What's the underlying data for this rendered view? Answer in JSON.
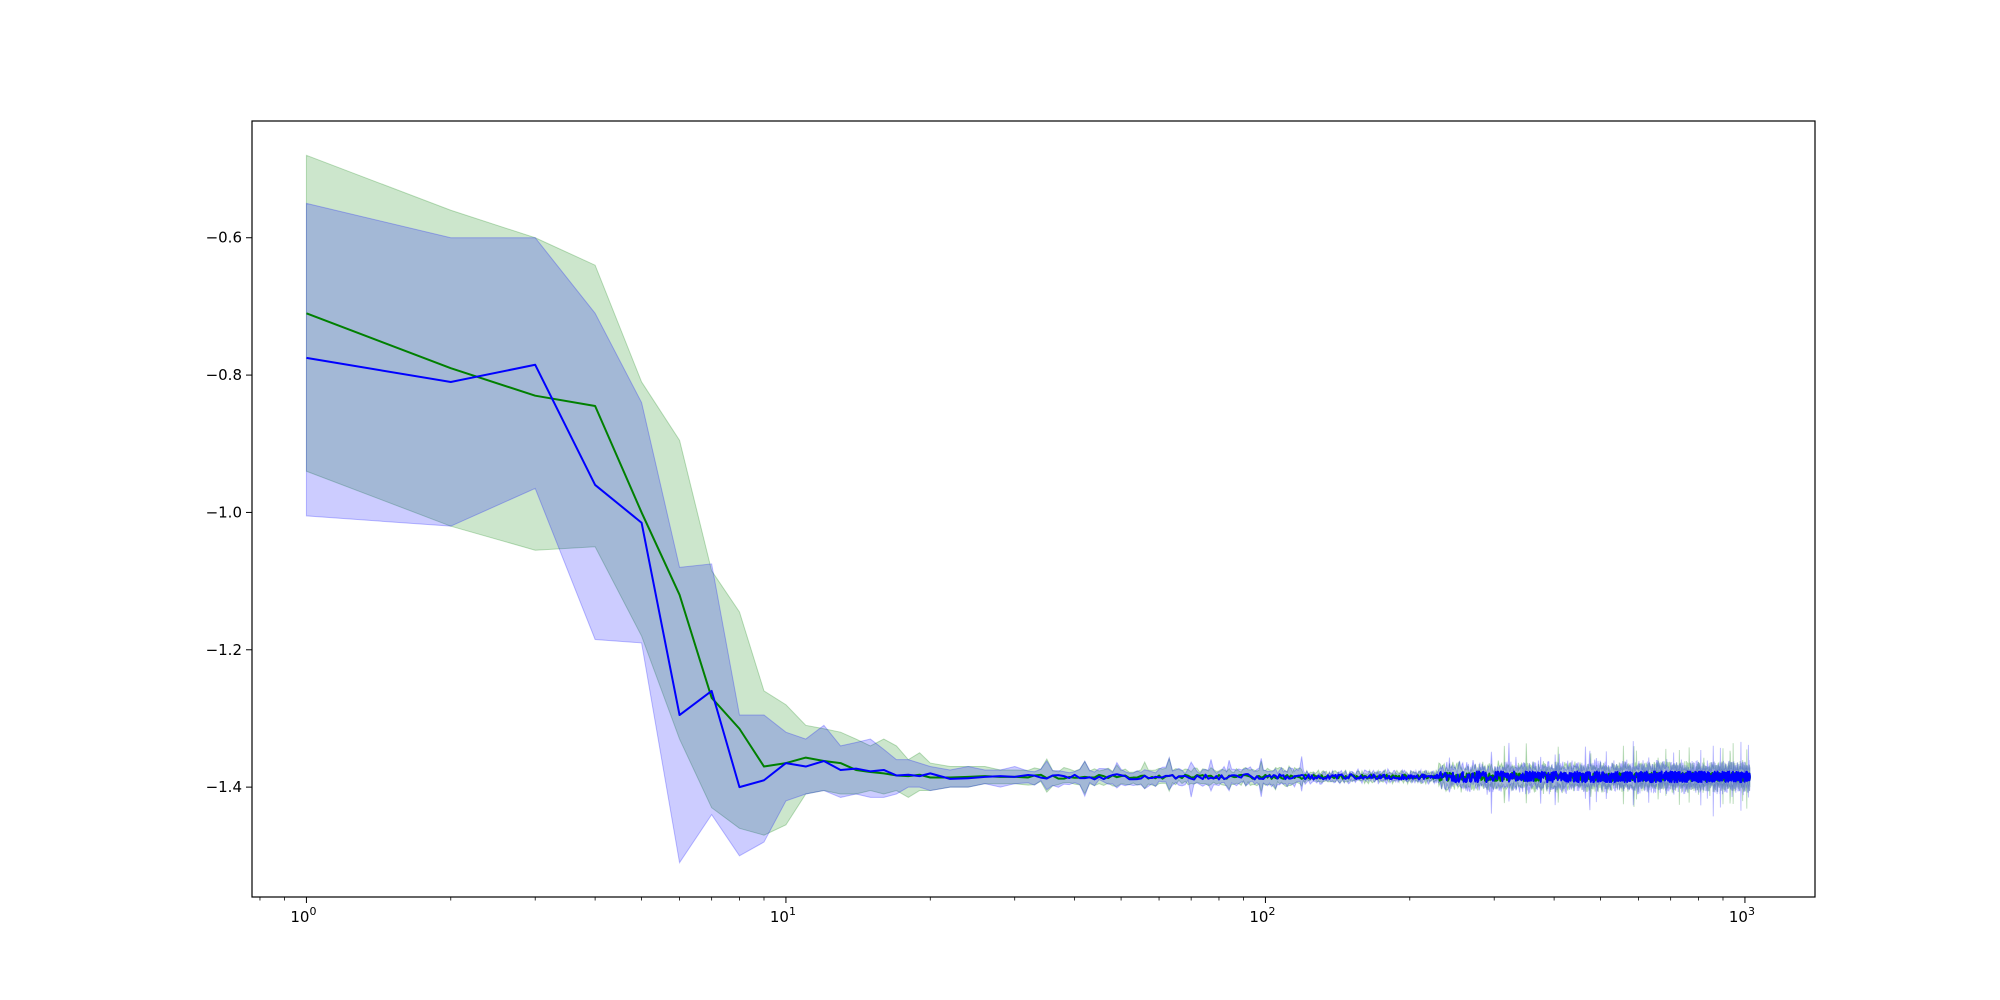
{
  "chart_data": {
    "type": "line",
    "title": "",
    "xlabel": "",
    "ylabel": "",
    "xscale": "log",
    "xlim": [
      0.77,
      1400
    ],
    "ylim": [
      -1.56,
      -0.43
    ],
    "grid": false,
    "legend": "none",
    "x_ticks": [
      {
        "value": 1,
        "base": "10",
        "exp": "0"
      },
      {
        "value": 10,
        "base": "10",
        "exp": "1"
      },
      {
        "value": 100,
        "base": "10",
        "exp": "2"
      },
      {
        "value": 1000,
        "base": "10",
        "exp": "3"
      }
    ],
    "y_ticks": [
      {
        "value": -0.6,
        "label": "−0.6"
      },
      {
        "value": -0.8,
        "label": "−0.8"
      },
      {
        "value": -1.0,
        "label": "−1.0"
      },
      {
        "value": -1.2,
        "label": "−1.2"
      },
      {
        "value": -1.4,
        "label": "−1.4"
      }
    ],
    "tail": {
      "start_x": 31,
      "end_x": 1024,
      "mean": -1.385
    },
    "series": [
      {
        "color": "#008000",
        "band_color": "#008000",
        "band_opacity": 0.2,
        "x": [
          1,
          2,
          3,
          4,
          5,
          6,
          7,
          8,
          9,
          10,
          11,
          12,
          13,
          14,
          15,
          16,
          17,
          18,
          19,
          20,
          22,
          24,
          26,
          28,
          30
        ],
        "mean": [
          -0.71,
          -0.79,
          -0.83,
          -0.845,
          -1.0,
          -1.12,
          -1.27,
          -1.315,
          -1.37,
          -1.365,
          -1.357,
          -1.362,
          -1.365,
          -1.375,
          -1.378,
          -1.38,
          -1.383,
          -1.384,
          -1.382,
          -1.386,
          -1.386,
          -1.385,
          -1.384,
          -1.385,
          -1.385
        ],
        "upper": [
          -0.48,
          -0.56,
          -0.6,
          -0.64,
          -0.81,
          -0.895,
          -1.085,
          -1.145,
          -1.26,
          -1.28,
          -1.31,
          -1.315,
          -1.32,
          -1.33,
          -1.34,
          -1.33,
          -1.34,
          -1.36,
          -1.35,
          -1.365,
          -1.37,
          -1.37,
          -1.37,
          -1.375,
          -1.375
        ],
        "lower": [
          -0.94,
          -1.02,
          -1.055,
          -1.05,
          -1.18,
          -1.33,
          -1.43,
          -1.46,
          -1.47,
          -1.455,
          -1.41,
          -1.405,
          -1.41,
          -1.41,
          -1.405,
          -1.41,
          -1.405,
          -1.415,
          -1.405,
          -1.405,
          -1.4,
          -1.4,
          -1.395,
          -1.395,
          -1.395
        ]
      },
      {
        "color": "#0000ff",
        "band_color": "#0000ff",
        "band_opacity": 0.2,
        "x": [
          1,
          2,
          3,
          4,
          5,
          6,
          7,
          8,
          9,
          10,
          11,
          12,
          13,
          14,
          15,
          16,
          17,
          18,
          19,
          20,
          22,
          24,
          26,
          28,
          30
        ],
        "mean": [
          -0.775,
          -0.81,
          -0.785,
          -0.96,
          -1.015,
          -1.295,
          -1.26,
          -1.4,
          -1.39,
          -1.365,
          -1.37,
          -1.362,
          -1.375,
          -1.373,
          -1.377,
          -1.375,
          -1.383,
          -1.382,
          -1.384,
          -1.38,
          -1.388,
          -1.387,
          -1.385,
          -1.384,
          -1.385
        ],
        "upper": [
          -0.55,
          -0.6,
          -0.6,
          -0.71,
          -0.84,
          -1.08,
          -1.075,
          -1.295,
          -1.295,
          -1.32,
          -1.33,
          -1.31,
          -1.34,
          -1.335,
          -1.33,
          -1.345,
          -1.36,
          -1.36,
          -1.365,
          -1.37,
          -1.375,
          -1.37,
          -1.375,
          -1.375,
          -1.37
        ],
        "lower": [
          -1.005,
          -1.02,
          -0.965,
          -1.185,
          -1.19,
          -1.51,
          -1.44,
          -1.5,
          -1.48,
          -1.42,
          -1.41,
          -1.405,
          -1.415,
          -1.41,
          -1.415,
          -1.415,
          -1.41,
          -1.4,
          -1.4,
          -1.405,
          -1.4,
          -1.4,
          -1.395,
          -1.4,
          -1.395
        ]
      }
    ]
  }
}
